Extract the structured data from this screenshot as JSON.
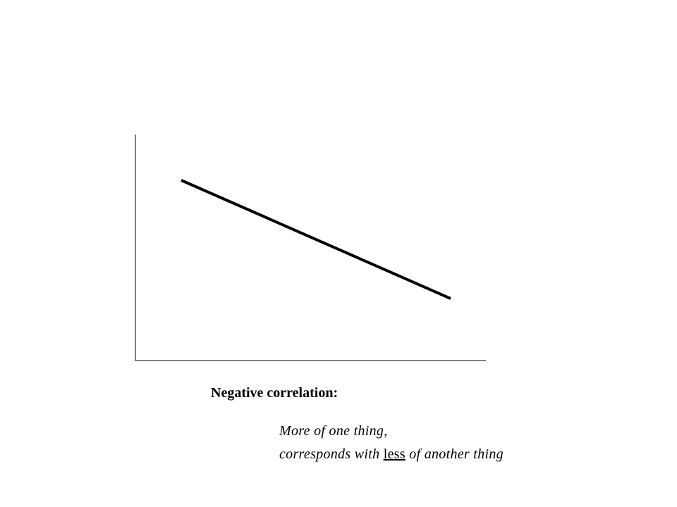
{
  "caption": {
    "title": "Negative correlation:",
    "line1": "More of one thing,",
    "line2": {
      "before": "corresponds with",
      "emphasis": "less",
      "after": "of another thing"
    }
  }
}
